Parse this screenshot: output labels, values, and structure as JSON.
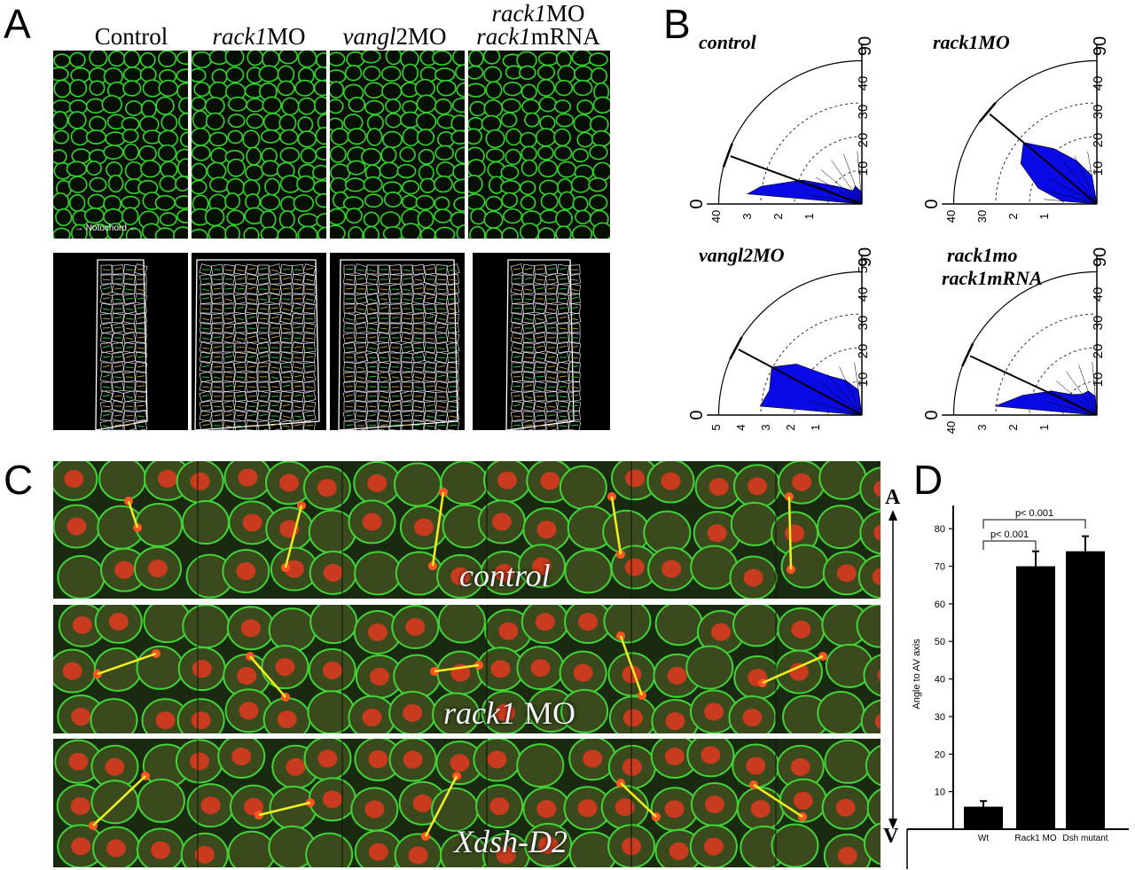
{
  "panels": {
    "a": "A",
    "b": "B",
    "c": "C",
    "d": "D"
  },
  "panel_a": {
    "columns": [
      {
        "italic": "",
        "plain": "Control"
      },
      {
        "italic": "rack1",
        "plain": "MO"
      },
      {
        "italic": "vangl",
        "plain": "2MO"
      },
      {
        "line1_italic": "rack1",
        "line1_plain": "MO",
        "line2_italic": "rack1",
        "line2_plain": "mRNA"
      }
    ],
    "notochord_label": "Notochord"
  },
  "panel_b": {
    "roses": [
      {
        "title_line1": "control",
        "title_line2": "",
        "top_label": "90",
        "left_label": "0",
        "radial_ticks": [
          "10",
          "20",
          "30",
          "40"
        ],
        "base_ticks": [
          "40",
          "3",
          "2",
          "1"
        ],
        "mean_angle_deg": 20,
        "color": "#0a0ae6"
      },
      {
        "title_line1": "rack1MO",
        "title_line2": "",
        "top_label": "90",
        "left_label": "0",
        "radial_ticks": [
          "10",
          "20",
          "30",
          "40"
        ],
        "base_ticks": [
          "40",
          "30",
          "2",
          "1"
        ],
        "mean_angle_deg": 40,
        "color": "#0a0ae6"
      },
      {
        "title_line1": "vangl2MO",
        "title_line2": "",
        "top_label": "90",
        "left_label": "0",
        "radial_ticks": [
          "10",
          "20",
          "30",
          "40",
          "50"
        ],
        "base_ticks": [
          "5",
          "4",
          "3",
          "2",
          "1"
        ],
        "mean_angle_deg": 28,
        "color": "#0a0ae6"
      },
      {
        "title_line1": "rack1mo",
        "title_line2": "rack1mRNA",
        "top_label": "90",
        "left_label": "0",
        "radial_ticks": [
          "10",
          "20",
          "30",
          "40"
        ],
        "base_ticks": [
          "40",
          "3",
          "2",
          "1"
        ],
        "mean_angle_deg": 25,
        "color": "#0a0ae6"
      }
    ]
  },
  "panel_c": {
    "rows": [
      {
        "label_italic": "control",
        "label_plain": ""
      },
      {
        "label_italic": "rack1",
        "label_plain": " MO"
      },
      {
        "label_italic": "Xdsh-D2",
        "label_plain": ""
      }
    ],
    "axis_top": "A",
    "axis_bottom": "V"
  },
  "chart_data": {
    "type": "bar",
    "categories": [
      "Wt",
      "Rack1 MO",
      "Dsh mutant"
    ],
    "values": [
      6,
      70,
      74
    ],
    "errors": [
      1.5,
      4,
      4
    ],
    "title": "",
    "xlabel": "",
    "ylabel": "Angle to AV axis",
    "ylim": [
      0,
      85
    ],
    "yticks": [
      "10",
      "20",
      "30",
      "40",
      "50",
      "60",
      "70",
      "80"
    ],
    "annotations": [
      "p< 0.001",
      "p< 0.001"
    ],
    "bar_color": "#000000"
  }
}
